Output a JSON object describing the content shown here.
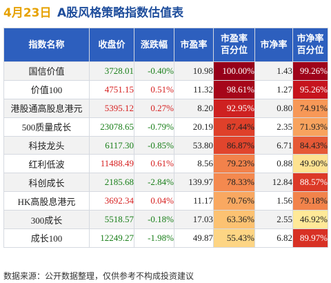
{
  "title": {
    "date": "4月23日",
    "text": "A股风格策略指数估值表"
  },
  "headers": {
    "name": "指数名称",
    "close": "收盘价",
    "change": "涨跌幅",
    "pe": "市盈率",
    "pe_pct": [
      "市盈率",
      "百分位"
    ],
    "pb": "市净率",
    "pb_pct": [
      "市净率",
      "百分位"
    ]
  },
  "colors": {
    "header_bg": "#2d5fbe",
    "up": "#d62020",
    "down": "#1a7f1a",
    "date": "#e6a100",
    "title": "#1f4e9c"
  },
  "rows": [
    {
      "name": "国信价值",
      "close": "3728.01",
      "change": "-0.40%",
      "pe": "10.98",
      "pe_pct": "100.00%",
      "pb": "1.43",
      "pb_pct": "99.26%"
    },
    {
      "name": "价值100",
      "close": "4751.15",
      "change": "0.51%",
      "pe": "11.32",
      "pe_pct": "98.61%",
      "pb": "1.27",
      "pb_pct": "95.26%"
    },
    {
      "name": "港股通高股息港元",
      "close": "5395.12",
      "change": "0.27%",
      "pe": "8.20",
      "pe_pct": "92.95%",
      "pb": "0.80",
      "pb_pct": "74.91%"
    },
    {
      "name": "500质量成长",
      "close": "23078.65",
      "change": "-0.79%",
      "pe": "20.19",
      "pe_pct": "87.44%",
      "pb": "2.35",
      "pb_pct": "71.93%"
    },
    {
      "name": "科技龙头",
      "close": "6117.30",
      "change": "-0.85%",
      "pe": "53.80",
      "pe_pct": "86.87%",
      "pb": "6.71",
      "pb_pct": "84.43%"
    },
    {
      "name": "红利低波",
      "close": "11488.49",
      "change": "0.61%",
      "pe": "8.56",
      "pe_pct": "79.23%",
      "pb": "0.88",
      "pb_pct": "49.90%"
    },
    {
      "name": "科创成长",
      "close": "2185.68",
      "change": "-2.84%",
      "pe": "139.97",
      "pe_pct": "78.33%",
      "pb": "12.84",
      "pb_pct": "88.57%"
    },
    {
      "name": "HK高股息港元",
      "close": "3692.34",
      "change": "0.04%",
      "pe": "11.17",
      "pe_pct": "70.76%",
      "pb": "1.56",
      "pb_pct": "79.18%"
    },
    {
      "name": "300成长",
      "close": "5518.57",
      "change": "-0.18%",
      "pe": "17.03",
      "pe_pct": "63.36%",
      "pb": "2.55",
      "pb_pct": "46.92%"
    },
    {
      "name": "成长100",
      "close": "12249.27",
      "change": "-1.98%",
      "pe": "49.87",
      "pe_pct": "55.43%",
      "pb": "6.82",
      "pb_pct": "89.97%"
    }
  ],
  "footer": "数据来源：公开数据整理，仅供参考不构成投资建议"
}
